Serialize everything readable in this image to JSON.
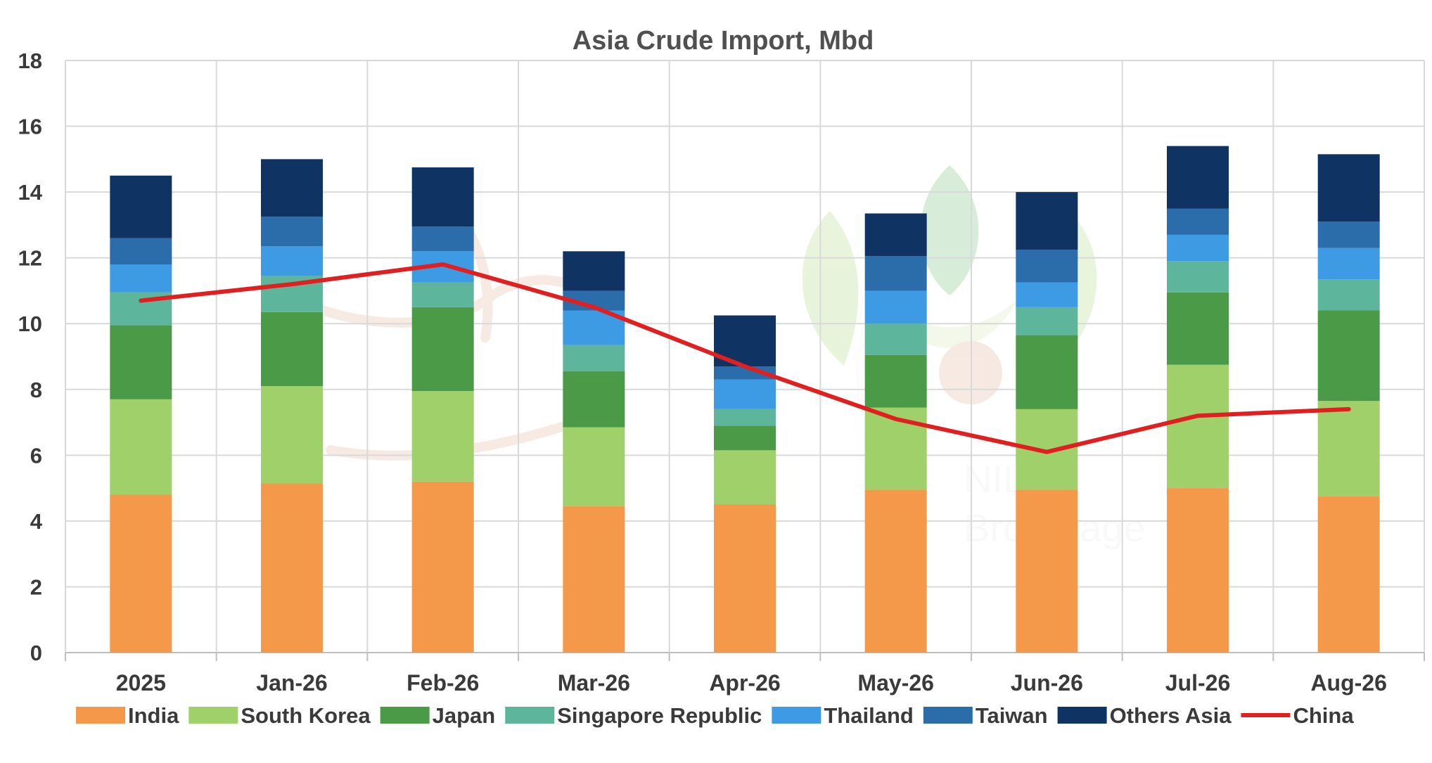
{
  "chart_data": {
    "type": "bar",
    "stacked": true,
    "title": "Asia Crude Import, Mbd",
    "xlabel": "",
    "ylabel": "",
    "ylim": [
      0,
      18
    ],
    "yticks": [
      0,
      2,
      4,
      6,
      8,
      10,
      12,
      14,
      16,
      18
    ],
    "grid": true,
    "legend": "bottom",
    "categories": [
      "2025",
      "Jan-26",
      "Feb-26",
      "Mar-26",
      "Apr-26",
      "May-26",
      "Jun-26",
      "Jul-26",
      "Aug-26"
    ],
    "series": [
      {
        "name": "India",
        "type": "bar",
        "color": "#F4994A",
        "values": [
          4.8,
          5.15,
          5.2,
          4.45,
          4.5,
          4.95,
          4.95,
          5.0,
          4.75
        ]
      },
      {
        "name": "South Korea",
        "type": "bar",
        "color": "#9FD06A",
        "values": [
          2.9,
          2.95,
          2.75,
          2.4,
          1.65,
          2.5,
          2.45,
          3.75,
          2.9
        ]
      },
      {
        "name": "Japan",
        "type": "bar",
        "color": "#4A9A48",
        "values": [
          2.25,
          2.25,
          2.55,
          1.7,
          0.75,
          1.6,
          2.25,
          2.2,
          2.75
        ]
      },
      {
        "name": "Singapore Republic",
        "type": "bar",
        "color": "#5DB59C",
        "values": [
          1.0,
          1.1,
          0.75,
          0.8,
          0.5,
          0.95,
          0.85,
          0.95,
          0.95
        ]
      },
      {
        "name": "Thailand",
        "type": "bar",
        "color": "#3D9BE3",
        "values": [
          0.85,
          0.9,
          0.95,
          1.05,
          0.9,
          1.0,
          0.75,
          0.8,
          0.95
        ]
      },
      {
        "name": "Taiwan",
        "type": "bar",
        "color": "#2A6DAA",
        "values": [
          0.8,
          0.9,
          0.75,
          0.6,
          0.4,
          1.05,
          1.0,
          0.8,
          0.8
        ]
      },
      {
        "name": "Others Asia",
        "type": "bar",
        "color": "#0F3362",
        "values": [
          1.9,
          1.75,
          1.8,
          1.2,
          1.55,
          1.3,
          1.75,
          1.9,
          2.05
        ]
      },
      {
        "name": "China",
        "type": "line",
        "color": "#E02020",
        "values": [
          10.7,
          11.2,
          11.8,
          10.5,
          8.7,
          7.1,
          6.1,
          7.2,
          7.4
        ]
      }
    ]
  },
  "watermark": {
    "text_line1": "NIL",
    "text_line2": "Brokerage"
  }
}
